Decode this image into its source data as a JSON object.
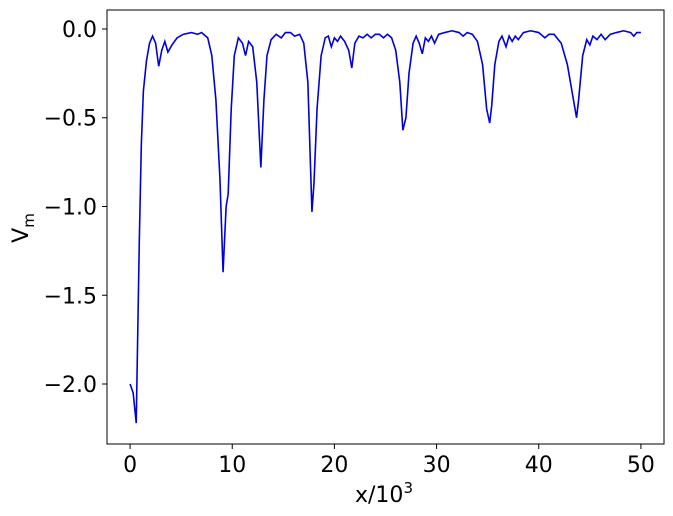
{
  "chart_data": {
    "type": "line",
    "xlabel": [
      "x/10",
      "3"
    ],
    "ylabel": [
      "V",
      "m"
    ],
    "color": "#0000dd",
    "xlim": [
      -2.26,
      52.26
    ],
    "ylim": [
      -2.338,
      0.107
    ],
    "xticks": [
      0,
      10,
      20,
      30,
      40,
      50
    ],
    "yticks": [
      {
        "value": 0,
        "label": "0.0"
      },
      {
        "value": -0.5,
        "label": "−0.5"
      },
      {
        "value": -1,
        "label": "−1.0"
      },
      {
        "value": -1.5,
        "label": "−1.5"
      },
      {
        "value": -2,
        "label": "−2.0"
      }
    ],
    "x": [
      0,
      0.3,
      0.6,
      0.9,
      1.1,
      1.3,
      1.6,
      1.9,
      2.2,
      2.5,
      2.8,
      3.1,
      3.4,
      3.7,
      4.1,
      4.6,
      5.2,
      6.0,
      6.6,
      7.0,
      7.6,
      8.0,
      8.4,
      8.8,
      9.1,
      9.4,
      9.6,
      9.9,
      10.2,
      10.6,
      11.0,
      11.3,
      11.6,
      12.0,
      12.4,
      12.8,
      13.1,
      13.4,
      13.8,
      14.3,
      14.8,
      15.2,
      15.7,
      16.1,
      16.6,
      17.0,
      17.4,
      17.8,
      18.0,
      18.3,
      18.7,
      19.1,
      19.4,
      19.7,
      20.0,
      20.3,
      20.6,
      21.0,
      21.4,
      21.7,
      22.0,
      22.4,
      22.8,
      23.2,
      23.6,
      24.0,
      24.4,
      24.8,
      25.2,
      25.6,
      26.0,
      26.4,
      26.7,
      27.0,
      27.3,
      27.7,
      28.0,
      28.3,
      28.6,
      28.9,
      29.2,
      29.5,
      29.8,
      30.2,
      30.8,
      31.5,
      32.2,
      32.6,
      33.0,
      33.5,
      34.0,
      34.5,
      34.9,
      35.2,
      35.4,
      35.7,
      36.1,
      36.4,
      36.8,
      37.1,
      37.4,
      37.7,
      38.0,
      38.5,
      39.2,
      40.0,
      40.6,
      41.0,
      41.5,
      42.2,
      42.8,
      43.4,
      43.7,
      43.9,
      44.3,
      44.7,
      45.0,
      45.3,
      45.7,
      46.1,
      46.5,
      47.0,
      47.6,
      48.3,
      49.0,
      49.3,
      49.6,
      50.0
    ],
    "values": [
      -2.0,
      -2.05,
      -2.22,
      -1.2,
      -0.65,
      -0.35,
      -0.18,
      -0.08,
      -0.04,
      -0.08,
      -0.21,
      -0.12,
      -0.07,
      -0.13,
      -0.09,
      -0.05,
      -0.03,
      -0.02,
      -0.03,
      -0.02,
      -0.05,
      -0.15,
      -0.4,
      -0.85,
      -1.37,
      -1.0,
      -0.93,
      -0.45,
      -0.15,
      -0.05,
      -0.08,
      -0.15,
      -0.07,
      -0.1,
      -0.3,
      -0.78,
      -0.4,
      -0.15,
      -0.06,
      -0.03,
      -0.05,
      -0.02,
      -0.02,
      -0.04,
      -0.03,
      -0.08,
      -0.3,
      -1.03,
      -0.87,
      -0.45,
      -0.15,
      -0.05,
      -0.04,
      -0.1,
      -0.05,
      -0.07,
      -0.04,
      -0.07,
      -0.12,
      -0.22,
      -0.08,
      -0.04,
      -0.05,
      -0.03,
      -0.05,
      -0.03,
      -0.03,
      -0.05,
      -0.03,
      -0.05,
      -0.12,
      -0.3,
      -0.57,
      -0.5,
      -0.25,
      -0.08,
      -0.04,
      -0.08,
      -0.14,
      -0.05,
      -0.07,
      -0.04,
      -0.08,
      -0.03,
      -0.02,
      -0.01,
      -0.02,
      -0.04,
      -0.02,
      -0.03,
      -0.07,
      -0.2,
      -0.45,
      -0.53,
      -0.43,
      -0.2,
      -0.07,
      -0.04,
      -0.1,
      -0.04,
      -0.07,
      -0.04,
      -0.06,
      -0.02,
      -0.01,
      -0.02,
      -0.05,
      -0.03,
      -0.03,
      -0.08,
      -0.2,
      -0.4,
      -0.5,
      -0.4,
      -0.15,
      -0.06,
      -0.09,
      -0.04,
      -0.06,
      -0.03,
      -0.06,
      -0.03,
      -0.02,
      -0.01,
      -0.02,
      -0.04,
      -0.02,
      -0.02
    ]
  }
}
